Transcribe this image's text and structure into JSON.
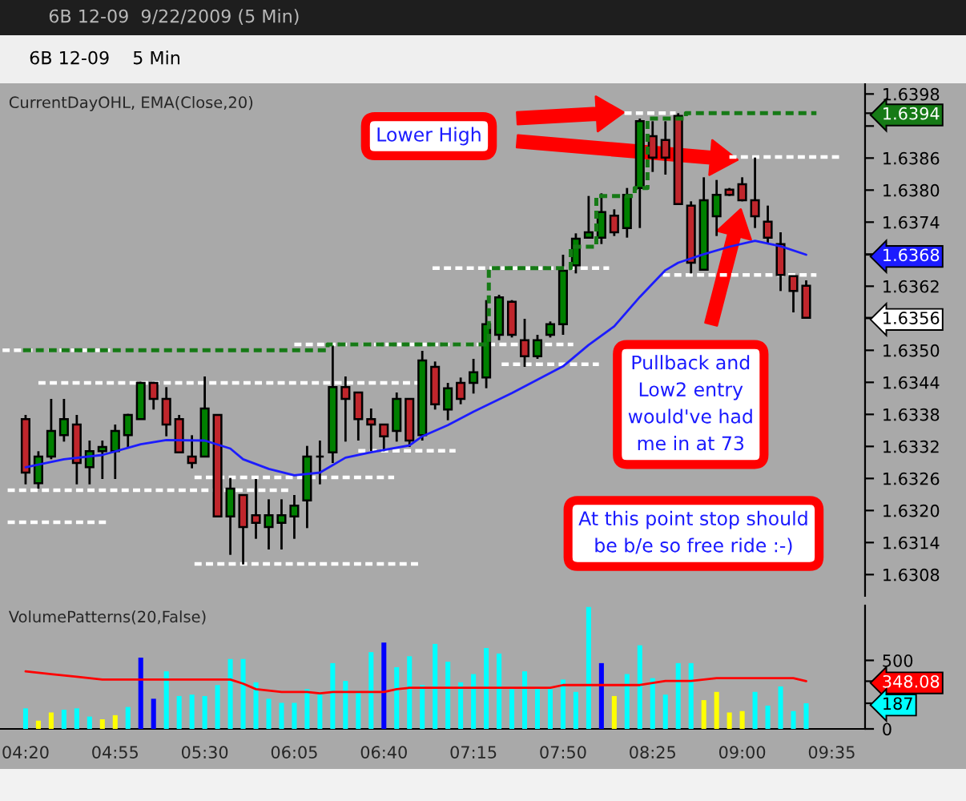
{
  "chart_data": [
    {
      "type": "candlestick",
      "title": "6B 12-09  9/22/2009 (5 Min)",
      "subtitle": "CurrentDayOHL, EMA(Close,20)",
      "x": [
        "2009-09-22T04:20",
        "2009-09-22T04:25",
        "2009-09-22T04:30",
        "2009-09-22T04:35",
        "2009-09-22T04:40",
        "2009-09-22T04:45",
        "2009-09-22T04:50",
        "2009-09-22T04:55",
        "2009-09-22T05:00",
        "2009-09-22T05:05",
        "2009-09-22T05:10",
        "2009-09-22T05:15",
        "2009-09-22T05:20",
        "2009-09-22T05:25",
        "2009-09-22T05:30",
        "2009-09-22T05:35",
        "2009-09-22T05:40",
        "2009-09-22T05:45",
        "2009-09-22T05:50",
        "2009-09-22T05:55",
        "2009-09-22T06:00",
        "2009-09-22T06:05",
        "2009-09-22T06:10",
        "2009-09-22T06:15",
        "2009-09-22T06:20",
        "2009-09-22T06:25",
        "2009-09-22T06:30",
        "2009-09-22T06:35",
        "2009-09-22T06:40",
        "2009-09-22T06:45",
        "2009-09-22T06:50",
        "2009-09-22T06:55",
        "2009-09-22T07:00",
        "2009-09-22T07:05",
        "2009-09-22T07:10",
        "2009-09-22T07:15",
        "2009-09-22T07:20",
        "2009-09-22T07:25",
        "2009-09-22T07:30",
        "2009-09-22T07:35",
        "2009-09-22T07:40",
        "2009-09-22T07:45",
        "2009-09-22T07:50",
        "2009-09-22T07:55",
        "2009-09-22T08:00",
        "2009-09-22T08:05",
        "2009-09-22T08:10",
        "2009-09-22T08:15",
        "2009-09-22T08:20",
        "2009-09-22T08:25",
        "2009-09-22T08:30",
        "2009-09-22T08:35",
        "2009-09-22T08:40",
        "2009-09-22T08:45",
        "2009-09-22T08:50",
        "2009-09-22T08:55",
        "2009-09-22T09:00",
        "2009-09-22T09:05",
        "2009-09-22T09:10",
        "2009-09-22T09:15",
        "2009-09-22T09:20",
        "2009-09-22T09:25"
      ],
      "ohlc": [
        [
          1.63371,
          1.63379,
          1.63249,
          1.63271
        ],
        [
          1.63251,
          1.63311,
          1.63241,
          1.63301
        ],
        [
          1.63301,
          1.63409,
          1.63296,
          1.63349
        ],
        [
          1.63341,
          1.63409,
          1.63329,
          1.63371
        ],
        [
          1.63361,
          1.63379,
          1.63249,
          1.63289
        ],
        [
          1.63281,
          1.63331,
          1.63249,
          1.63311
        ],
        [
          1.63311,
          1.63331,
          1.63259,
          1.63319
        ],
        [
          1.63311,
          1.63361,
          1.63259,
          1.63349
        ],
        [
          1.63341,
          1.63381,
          1.63319,
          1.63379
        ],
        [
          1.63371,
          1.63441,
          1.63371,
          1.63439
        ],
        [
          1.63439,
          1.63441,
          1.63389,
          1.63409
        ],
        [
          1.63409,
          1.63431,
          1.63339,
          1.63361
        ],
        [
          1.63371,
          1.63379,
          1.63309,
          1.63309
        ],
        [
          1.63301,
          1.63341,
          1.63279,
          1.63289
        ],
        [
          1.63301,
          1.63451,
          1.63301,
          1.63391
        ],
        [
          1.63379,
          1.63379,
          1.63189,
          1.63189
        ],
        [
          1.63189,
          1.63261,
          1.63117,
          1.63241
        ],
        [
          1.63229,
          1.63229,
          1.63099,
          1.63169
        ],
        [
          1.63191,
          1.63259,
          1.63147,
          1.63177
        ],
        [
          1.63169,
          1.63221,
          1.63127,
          1.63191
        ],
        [
          1.63177,
          1.63221,
          1.63127,
          1.63191
        ],
        [
          1.63189,
          1.63229,
          1.63147,
          1.63209
        ],
        [
          1.63219,
          1.63321,
          1.63167,
          1.63301
        ],
        [
          1.63301,
          1.63331,
          1.63249,
          1.63301
        ],
        [
          1.63309,
          1.63509,
          1.63289,
          1.63431
        ],
        [
          1.63431,
          1.63451,
          1.63329,
          1.63409
        ],
        [
          1.63421,
          1.63421,
          1.63331,
          1.63371
        ],
        [
          1.63371,
          1.63391,
          1.63311,
          1.63361
        ],
        [
          1.63361,
          1.63361,
          1.63311,
          1.63339
        ],
        [
          1.63349,
          1.63421,
          1.63329,
          1.63409
        ],
        [
          1.63409,
          1.63409,
          1.63319,
          1.63331
        ],
        [
          1.63341,
          1.63499,
          1.63331,
          1.63481
        ],
        [
          1.63469,
          1.63479,
          1.63389,
          1.63399
        ],
        [
          1.63389,
          1.63439,
          1.63369,
          1.63429
        ],
        [
          1.63439,
          1.63449,
          1.63399,
          1.63409
        ],
        [
          1.63439,
          1.63484,
          1.63419,
          1.63459
        ],
        [
          1.63449,
          1.63594,
          1.63429,
          1.63549
        ],
        [
          1.63529,
          1.63604,
          1.63519,
          1.63599
        ],
        [
          1.63591,
          1.63594,
          1.63524,
          1.63529
        ],
        [
          1.63519,
          1.63559,
          1.63469,
          1.63489
        ],
        [
          1.63489,
          1.63529,
          1.63484,
          1.63519
        ],
        [
          1.63529,
          1.63554,
          1.63524,
          1.63549
        ],
        [
          1.63549,
          1.63679,
          1.63529,
          1.63649
        ],
        [
          1.63659,
          1.63719,
          1.63644,
          1.63709
        ],
        [
          1.63711,
          1.63789,
          1.63709,
          1.63721
        ],
        [
          1.63711,
          1.63794,
          1.63699,
          1.63759
        ],
        [
          1.63752,
          1.63764,
          1.63714,
          1.63721
        ],
        [
          1.63729,
          1.63804,
          1.63711,
          1.63791
        ],
        [
          1.63804,
          1.63934,
          1.63729,
          1.63929
        ],
        [
          1.63901,
          1.63929,
          1.63834,
          1.63861
        ],
        [
          1.63894,
          1.63929,
          1.63829,
          1.63861
        ],
        [
          1.63939,
          1.63944,
          1.63774,
          1.63774
        ],
        [
          1.63771,
          1.63779,
          1.63644,
          1.63664
        ],
        [
          1.63651,
          1.63824,
          1.63651,
          1.63781
        ],
        [
          1.63751,
          1.63819,
          1.63714,
          1.63791
        ],
        [
          1.63801,
          1.63804,
          1.63789,
          1.63791
        ],
        [
          1.63811,
          1.63824,
          1.63779,
          1.63781
        ],
        [
          1.63781,
          1.63861,
          1.63729,
          1.63751
        ],
        [
          1.63741,
          1.63771,
          1.63701,
          1.63711
        ],
        [
          1.63699,
          1.63721,
          1.63611,
          1.63641
        ],
        [
          1.63639,
          1.63639,
          1.63571,
          1.63611
        ],
        [
          1.63621,
          1.63631,
          1.63559,
          1.63561
        ]
      ],
      "series": [
        {
          "type": "line",
          "color": "#1c1cff",
          "line_style": "solid",
          "x": [
            "2009-09-22T04:20",
            "2009-09-22T04:35",
            "2009-09-22T04:50",
            "2009-09-22T05:05",
            "2009-09-22T05:15",
            "2009-09-22T05:30",
            "2009-09-22T05:40",
            "2009-09-22T05:45",
            "2009-09-22T05:55",
            "2009-09-22T06:05",
            "2009-09-22T06:15",
            "2009-09-22T06:25",
            "2009-09-22T06:35",
            "2009-09-22T06:50",
            "2009-09-22T06:55",
            "2009-09-22T07:05",
            "2009-09-22T07:15",
            "2009-09-22T07:30",
            "2009-09-22T07:40",
            "2009-09-22T07:50",
            "2009-09-22T08:00",
            "2009-09-22T08:10",
            "2009-09-22T08:20",
            "2009-09-22T08:30",
            "2009-09-22T08:35",
            "2009-09-22T08:45",
            "2009-09-22T08:55",
            "2009-09-22T09:05",
            "2009-09-22T09:15",
            "2009-09-22T09:25"
          ],
          "values": [
            1.63281,
            1.63296,
            1.63304,
            1.63324,
            1.63332,
            1.63331,
            1.63316,
            1.63296,
            1.63278,
            1.63266,
            1.63271,
            1.63299,
            1.63309,
            1.63322,
            1.63339,
            1.6336,
            1.63385,
            1.6342,
            1.63445,
            1.6347,
            1.6351,
            1.63545,
            1.636,
            1.6365,
            1.63664,
            1.6368,
            1.63694,
            1.63705,
            1.63695,
            1.63679
          ]
        },
        {
          "type": "step",
          "color": "#167a16",
          "line_style": "dashed",
          "x": [
            "2009-09-22T04:19",
            "2009-09-22T06:18",
            "2009-09-22T07:21",
            "2009-09-22T07:53",
            "2009-09-22T08:03",
            "2009-09-22T08:18",
            "2009-09-22T08:23",
            "2009-09-22T08:38",
            "2009-09-22T09:29"
          ],
          "values": [
            1.635,
            1.63511,
            1.63654,
            1.63694,
            1.63789,
            1.63804,
            1.63934,
            1.63944,
            1.63944
          ]
        },
        {
          "type": "line",
          "color": "#ffffff",
          "line_style": "dashed",
          "x": [
            "2009-09-22T04:11",
            "2009-09-22T04:53"
          ],
          "values": [
            1.635,
            1.635
          ]
        },
        {
          "type": "line",
          "color": "#ffffff",
          "line_style": "dashed",
          "x": [
            "2009-09-22T04:25",
            "2009-09-22T06:55"
          ],
          "values": [
            1.63439,
            1.63439
          ]
        },
        {
          "type": "line",
          "color": "#ffffff",
          "line_style": "dashed",
          "x": [
            "2009-09-22T06:05",
            "2009-09-22T07:54"
          ],
          "values": [
            1.63511,
            1.63511
          ]
        },
        {
          "type": "line",
          "color": "#ffffff",
          "line_style": "dashed",
          "x": [
            "2009-09-22T06:30",
            "2009-09-22T07:08"
          ],
          "values": [
            1.63312,
            1.63312
          ]
        },
        {
          "type": "line",
          "color": "#ffffff",
          "line_style": "dashed",
          "x": [
            "2009-09-22T05:26",
            "2009-09-22T06:44"
          ],
          "values": [
            1.63262,
            1.63262
          ]
        },
        {
          "type": "line",
          "color": "#ffffff",
          "line_style": "dashed",
          "x": [
            "2009-09-22T04:13",
            "2009-09-22T06:04"
          ],
          "values": [
            1.63238,
            1.63238
          ]
        },
        {
          "type": "line",
          "color": "#ffffff",
          "line_style": "dashed",
          "x": [
            "2009-09-22T04:13",
            "2009-09-22T04:53"
          ],
          "values": [
            1.63178,
            1.63178
          ]
        },
        {
          "type": "line",
          "color": "#ffffff",
          "line_style": "dashed",
          "x": [
            "2009-09-22T05:26",
            "2009-09-22T06:55"
          ],
          "values": [
            1.631,
            1.631
          ]
        },
        {
          "type": "line",
          "color": "#ffffff",
          "line_style": "dashed",
          "x": [
            "2009-09-22T08:14",
            "2009-09-22T08:34"
          ],
          "values": [
            1.63944,
            1.63944
          ]
        },
        {
          "type": "line",
          "color": "#ffffff",
          "line_style": "dashed",
          "x": [
            "2009-09-22T08:55",
            "2009-09-22T09:39"
          ],
          "values": [
            1.63862,
            1.63862
          ]
        },
        {
          "type": "line",
          "color": "#ffffff",
          "line_style": "dashed",
          "x": [
            "2009-09-22T06:59",
            "2009-09-22T08:08"
          ],
          "values": [
            1.63654,
            1.63654
          ]
        },
        {
          "type": "line",
          "color": "#ffffff",
          "line_style": "dashed",
          "x": [
            "2009-09-22T08:29",
            "2009-09-22T09:29"
          ],
          "values": [
            1.63641,
            1.63641
          ]
        },
        {
          "type": "line",
          "color": "#ffffff",
          "line_style": "dashed",
          "x": [
            "2009-09-22T07:26",
            "2009-09-22T08:04"
          ],
          "values": [
            1.63474,
            1.63474
          ]
        }
      ],
      "xlim": [
        "2009-09-22T04:10",
        "2009-09-22T09:48"
      ],
      "ylim": [
        1.6304,
        1.64
      ],
      "yticks": [
        1.6308,
        1.6314,
        {
          "value": 1.632,
          "label": "1.6320"
        },
        1.6326,
        1.6332,
        1.6338,
        1.6344,
        {
          "value": 1.635,
          "label": "1.6350"
        },
        {
          "value": 1.6356,
          "label": null
        },
        1.6362,
        {
          "value": 1.6368,
          "label": null
        },
        1.6374,
        {
          "value": 1.638,
          "label": "1.6380"
        },
        1.6386,
        {
          "value": 1.6392,
          "label": null
        },
        1.6398,
        {
          "value": 1.63944,
          "label": "1.6394"
        },
        {
          "value": 1.63679,
          "label": "1.6368"
        },
        {
          "value": 1.63561,
          "label": "1.6356"
        }
      ],
      "tick_labels": "y",
      "annotations": [
        "6B 12-09",
        "5 Min",
        "Lower High",
        "Pullback and\nLow2 entry\nwould've had\nme in at 73",
        "At this point stop should\nbe b/e so free ride :-)"
      ]
    },
    {
      "type": "bar",
      "title": "VolumePatterns(20,False)",
      "x": [
        "2009-09-22T04:20",
        "2009-09-22T04:25",
        "2009-09-22T04:30",
        "2009-09-22T04:35",
        "2009-09-22T04:40",
        "2009-09-22T04:45",
        "2009-09-22T04:50",
        "2009-09-22T04:55",
        "2009-09-22T05:00",
        "2009-09-22T05:05",
        "2009-09-22T05:10",
        "2009-09-22T05:15",
        "2009-09-22T05:20",
        "2009-09-22T05:25",
        "2009-09-22T05:30",
        "2009-09-22T05:35",
        "2009-09-22T05:40",
        "2009-09-22T05:45",
        "2009-09-22T05:50",
        "2009-09-22T05:55",
        "2009-09-22T06:00",
        "2009-09-22T06:05",
        "2009-09-22T06:10",
        "2009-09-22T06:15",
        "2009-09-22T06:20",
        "2009-09-22T06:25",
        "2009-09-22T06:30",
        "2009-09-22T06:35",
        "2009-09-22T06:40",
        "2009-09-22T06:45",
        "2009-09-22T06:50",
        "2009-09-22T06:55",
        "2009-09-22T07:00",
        "2009-09-22T07:05",
        "2009-09-22T07:10",
        "2009-09-22T07:15",
        "2009-09-22T07:20",
        "2009-09-22T07:25",
        "2009-09-22T07:30",
        "2009-09-22T07:35",
        "2009-09-22T07:40",
        "2009-09-22T07:45",
        "2009-09-22T07:50",
        "2009-09-22T07:55",
        "2009-09-22T08:00",
        "2009-09-22T08:05",
        "2009-09-22T08:10",
        "2009-09-22T08:15",
        "2009-09-22T08:20",
        "2009-09-22T08:25",
        "2009-09-22T08:30",
        "2009-09-22T08:35",
        "2009-09-22T08:40",
        "2009-09-22T08:45",
        "2009-09-22T08:50",
        "2009-09-22T08:55",
        "2009-09-22T09:00",
        "2009-09-22T09:05",
        "2009-09-22T09:10",
        "2009-09-22T09:15",
        "2009-09-22T09:20",
        "2009-09-22T09:25"
      ],
      "values": [
        150,
        60,
        120,
        140,
        150,
        90,
        70,
        100,
        160,
        520,
        220,
        420,
        240,
        250,
        240,
        320,
        510,
        510,
        340,
        220,
        190,
        190,
        290,
        260,
        480,
        350,
        280,
        560,
        630,
        450,
        530,
        320,
        620,
        490,
        340,
        400,
        590,
        550,
        290,
        420,
        290,
        290,
        360,
        270,
        890,
        480,
        240,
        400,
        610,
        370,
        250,
        480,
        480,
        210,
        270,
        120,
        130,
        270,
        170,
        310,
        130,
        187
      ],
      "colors": [
        "#00ffff",
        "#ffff00",
        "#ffff00",
        "#00ffff",
        "#00ffff",
        "#00ffff",
        "#ffff00",
        "#ffff00",
        "#00ffff",
        "#0000ff",
        "#0000ff",
        "#00ffff",
        "#00ffff",
        "#00ffff",
        "#00ffff",
        "#00ffff",
        "#00ffff",
        "#00ffff",
        "#00ffff",
        "#00ffff",
        "#00ffff",
        "#00ffff",
        "#00ffff",
        "#00ffff",
        "#00ffff",
        "#00ffff",
        "#00ffff",
        "#00ffff",
        "#0000ff",
        "#00ffff",
        "#00ffff",
        "#00ffff",
        "#00ffff",
        "#00ffff",
        "#00ffff",
        "#00ffff",
        "#00ffff",
        "#00ffff",
        "#00ffff",
        "#00ffff",
        "#00ffff",
        "#00ffff",
        "#00ffff",
        "#00ffff",
        "#00ffff",
        "#0000ff",
        "#ffff00",
        "#00ffff",
        "#00ffff",
        "#00ffff",
        "#00ffff",
        "#00ffff",
        "#00ffff",
        "#ffff00",
        "#ffff00",
        "#ffff00",
        "#ffff00",
        "#00ffff",
        "#00ffff",
        "#00ffff",
        "#00ffff",
        "#00ffff"
      ],
      "series": [
        {
          "type": "line",
          "color": "#ff0000",
          "line_style": "solid",
          "x": [
            "2009-09-22T04:20",
            "2009-09-22T04:30",
            "2009-09-22T04:40",
            "2009-09-22T04:50",
            "2009-09-22T05:40",
            "2009-09-22T05:45",
            "2009-09-22T05:50",
            "2009-09-22T06:00",
            "2009-09-22T06:10",
            "2009-09-22T06:15",
            "2009-09-22T06:20",
            "2009-09-22T06:40",
            "2009-09-22T06:45",
            "2009-09-22T06:50",
            "2009-09-22T07:45",
            "2009-09-22T07:50",
            "2009-09-22T08:05",
            "2009-09-22T08:10",
            "2009-09-22T08:20",
            "2009-09-22T08:30",
            "2009-09-22T08:40",
            "2009-09-22T08:50",
            "2009-09-22T09:20",
            "2009-09-22T09:25"
          ],
          "values": [
            420,
            400,
            380,
            360,
            360,
            330,
            290,
            270,
            270,
            260,
            270,
            270,
            290,
            300,
            300,
            320,
            320,
            320,
            320,
            350,
            350,
            370,
            370,
            348.08
          ]
        }
      ],
      "xlim": [
        "2009-09-22T04:10",
        "2009-09-22T09:48"
      ],
      "ylim": [
        0,
        900
      ],
      "yticks": [
        0,
        500,
        {
          "value": 348.08,
          "label": "348.08"
        },
        {
          "value": 187,
          "label": "187"
        }
      ],
      "xticks": [
        {
          "value": "2009-09-22T04:20",
          "label": "04:20"
        },
        {
          "value": "2009-09-22T04:55",
          "label": "04:55"
        },
        {
          "value": "2009-09-22T05:30",
          "label": "05:30"
        },
        {
          "value": "2009-09-22T06:05",
          "label": "06:05"
        },
        {
          "value": "2009-09-22T06:40",
          "label": "06:40"
        },
        {
          "value": "2009-09-22T07:15",
          "label": "07:15"
        },
        {
          "value": "2009-09-22T07:50",
          "label": "07:50"
        },
        {
          "value": "2009-09-22T08:25",
          "label": "08:25"
        },
        {
          "value": "2009-09-22T09:00",
          "label": "09:00"
        },
        {
          "value": "2009-09-22T09:35",
          "label": "09:35"
        }
      ]
    }
  ]
}
